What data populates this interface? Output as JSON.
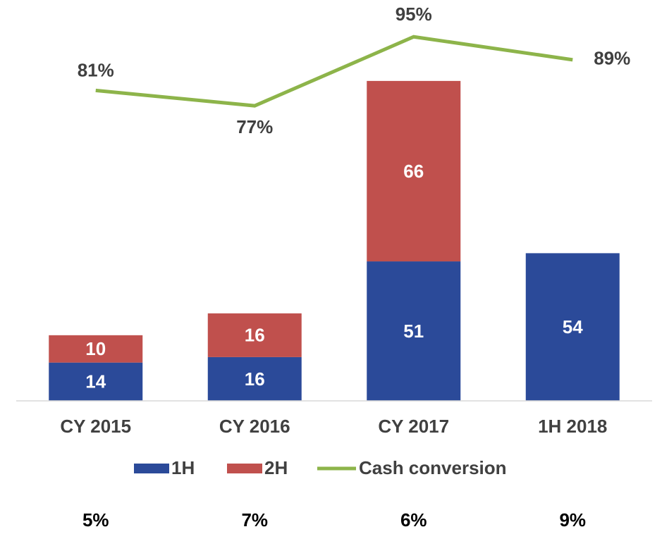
{
  "chart_data": {
    "type": "bar",
    "categories": [
      "CY 2015",
      "CY 2016",
      "CY 2017",
      "1H 2018"
    ],
    "series": [
      {
        "name": "1H",
        "color": "#2b4a99",
        "values": [
          14,
          16,
          51,
          54
        ]
      },
      {
        "name": "2H",
        "color": "#c0504d",
        "values": [
          10,
          16,
          66,
          null
        ]
      },
      {
        "name": "Cash conversion",
        "type": "line",
        "axis": "y2",
        "color": "#8db44a",
        "values": [
          81,
          77,
          95,
          89
        ],
        "value_labels": [
          "81%",
          "77%",
          "95%",
          "89%"
        ]
      }
    ],
    "ylim": [
      0,
      146.6
    ],
    "y2lim": [
      0,
      104.6
    ],
    "stacked": true,
    "grid": false,
    "legend": "bottom",
    "footer_labels": [
      "5%",
      "7%",
      "6%",
      "9%"
    ]
  }
}
